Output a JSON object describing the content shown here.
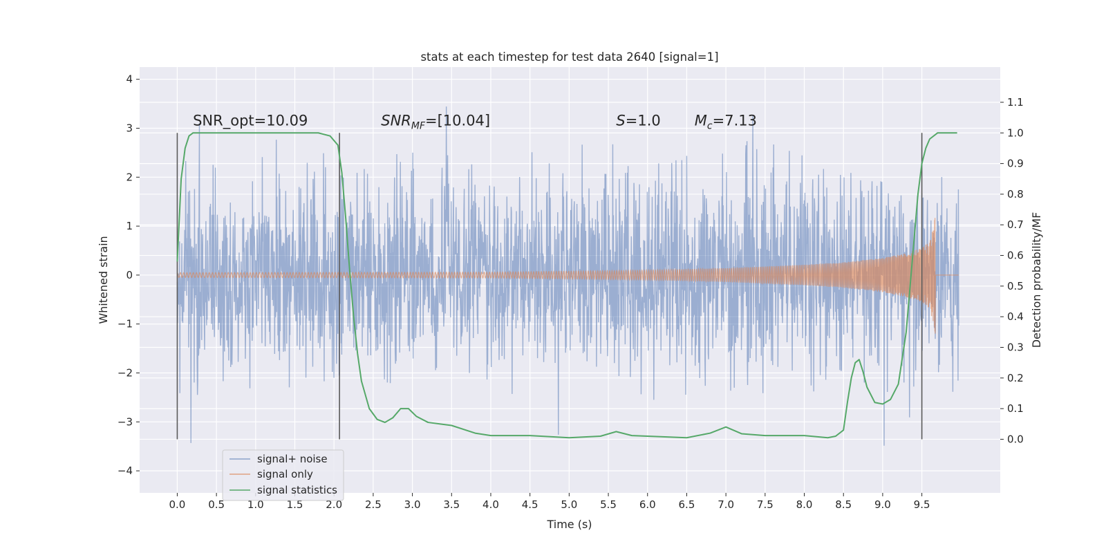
{
  "chart_data": {
    "type": "line",
    "title": "stats at each timestep for test data 2640 [signal=1]",
    "xlabel": "Time (s)",
    "ylabel": "Whitened strain",
    "y2label": "Detection probability/MF",
    "xlim": [
      -0.48,
      10.5
    ],
    "ylim": [
      -4.45,
      4.25
    ],
    "y2lim": [
      -0.175,
      1.215
    ],
    "xticks": [
      "0.0",
      "0.5",
      "1.0",
      "1.5",
      "2.0",
      "2.5",
      "3.0",
      "3.5",
      "4.0",
      "4.5",
      "5.0",
      "5.5",
      "6.0",
      "6.5",
      "7.0",
      "7.5",
      "8.0",
      "8.5",
      "9.0",
      "9.5"
    ],
    "yticks": [
      "4",
      "3",
      "2",
      "1",
      "0",
      "−1",
      "−2",
      "−3",
      "−4"
    ],
    "y2ticks": [
      "1.1",
      "1.0",
      "0.9",
      "0.8",
      "0.7",
      "0.6",
      "0.5",
      "0.4",
      "0.3",
      "0.2",
      "0.1",
      "0.0"
    ],
    "grid": true,
    "legend_position": "lower-left",
    "colors": {
      "noise": "#4c72b0",
      "signal": "#dd8452",
      "stats": "#55a868",
      "vline": "#5a5a5a",
      "background": "#eaeaf2",
      "grid": "#ffffff"
    },
    "series": [
      {
        "name": "signal+ noise",
        "kind": "noise-trace",
        "x_range": [
          0.0,
          9.97
        ],
        "amplitude": 1.0,
        "y_min": -3.6,
        "y_max": 3.9
      },
      {
        "name": "signal only",
        "kind": "chirp",
        "x_range": [
          0.0,
          9.67
        ],
        "envelope_x": [
          0.0,
          4.0,
          5.0,
          6.0,
          7.0,
          8.0,
          8.5,
          9.0,
          9.3,
          9.5,
          9.6,
          9.65,
          9.67
        ],
        "envelope_y": [
          0.05,
          0.06,
          0.08,
          0.1,
          0.14,
          0.21,
          0.26,
          0.35,
          0.45,
          0.55,
          0.7,
          1.0,
          1.2
        ]
      },
      {
        "name": "signal statistics",
        "kind": "line",
        "x": [
          0.0,
          0.05,
          0.1,
          0.15,
          0.2,
          0.3,
          0.5,
          1.0,
          1.5,
          1.8,
          1.95,
          2.05,
          2.1,
          2.15,
          2.2,
          2.25,
          2.3,
          2.35,
          2.45,
          2.55,
          2.65,
          2.75,
          2.85,
          2.95,
          3.05,
          3.2,
          3.5,
          3.8,
          4.0,
          4.5,
          5.0,
          5.4,
          5.6,
          5.8,
          6.0,
          6.5,
          6.8,
          7.0,
          7.2,
          7.5,
          8.0,
          8.3,
          8.4,
          8.5,
          8.55,
          8.6,
          8.65,
          8.7,
          8.75,
          8.8,
          8.9,
          9.0,
          9.1,
          9.2,
          9.3,
          9.35,
          9.4,
          9.45,
          9.5,
          9.55,
          9.6,
          9.7,
          9.8,
          9.9,
          9.95
        ],
        "y": [
          0.58,
          0.85,
          0.95,
          0.99,
          1.0,
          1.0,
          1.0,
          1.0,
          1.0,
          1.0,
          0.99,
          0.96,
          0.87,
          0.72,
          0.55,
          0.4,
          0.28,
          0.19,
          0.1,
          0.065,
          0.055,
          0.07,
          0.1,
          0.1,
          0.075,
          0.055,
          0.045,
          0.02,
          0.012,
          0.012,
          0.005,
          0.01,
          0.025,
          0.012,
          0.01,
          0.005,
          0.02,
          0.04,
          0.018,
          0.012,
          0.012,
          0.005,
          0.01,
          0.03,
          0.12,
          0.2,
          0.25,
          0.26,
          0.22,
          0.17,
          0.12,
          0.115,
          0.13,
          0.18,
          0.35,
          0.5,
          0.65,
          0.8,
          0.9,
          0.95,
          0.98,
          1.0,
          1.0,
          1.0,
          1.0
        ]
      }
    ],
    "vlines": [
      0.0,
      2.07,
      9.5
    ],
    "vline_range": [
      0.0,
      1.0
    ],
    "annotations": [
      {
        "x": 0.2,
        "y": 3.0,
        "parts": [
          {
            "t": "SNR_opt=10.09"
          }
        ]
      },
      {
        "x": 2.6,
        "y": 3.0,
        "parts": [
          {
            "t": "SNR",
            "i": true
          },
          {
            "t": "MF",
            "i": true,
            "sub": true
          },
          {
            "t": "=[10.04]"
          }
        ]
      },
      {
        "x": 5.6,
        "y": 3.0,
        "parts": [
          {
            "t": "S",
            "i": true
          },
          {
            "t": "=1.0"
          }
        ]
      },
      {
        "x": 6.6,
        "y": 3.0,
        "parts": [
          {
            "t": "M",
            "i": true
          },
          {
            "t": "c",
            "i": true,
            "sub": true
          },
          {
            "t": "=7.13"
          }
        ]
      }
    ]
  }
}
